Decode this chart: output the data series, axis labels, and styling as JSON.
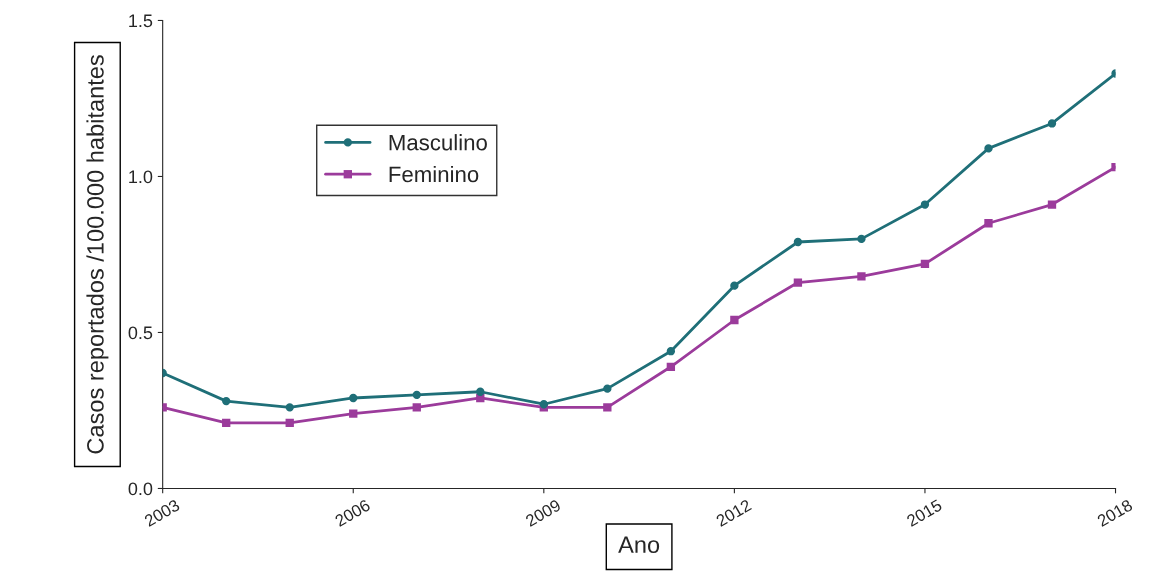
{
  "chart_data": {
    "type": "line",
    "xlabel": "Ano",
    "ylabel": "Casos reportados /100.000 habitantes",
    "x": [
      2003,
      2004,
      2005,
      2006,
      2007,
      2008,
      2009,
      2010,
      2011,
      2012,
      2013,
      2014,
      2015,
      2016,
      2017,
      2018
    ],
    "series": [
      {
        "name": "Masculino",
        "color": "#1f6f78",
        "marker": "circle",
        "values": [
          0.37,
          0.28,
          0.26,
          0.29,
          0.3,
          0.31,
          0.27,
          0.32,
          0.44,
          0.65,
          0.79,
          0.8,
          0.91,
          1.09,
          1.17,
          1.33
        ]
      },
      {
        "name": "Feminino",
        "color": "#9b3b9b",
        "marker": "square",
        "values": [
          0.26,
          0.21,
          0.21,
          0.24,
          0.26,
          0.29,
          0.26,
          0.26,
          0.39,
          0.54,
          0.66,
          0.68,
          0.72,
          0.85,
          0.91,
          1.03
        ]
      }
    ],
    "xlim": [
      2003,
      2018
    ],
    "xticks": [
      2003,
      2006,
      2009,
      2012,
      2015,
      2018
    ],
    "ylim": [
      0,
      1.5
    ],
    "yticks": [
      {
        "value": 0,
        "label": "0.0"
      },
      {
        "value": 0.5,
        "label": "0.5"
      },
      {
        "value": 1.0,
        "label": "1.0"
      },
      {
        "value": 1.5,
        "label": "1.5"
      }
    ],
    "grid": false,
    "legend": "top left"
  }
}
